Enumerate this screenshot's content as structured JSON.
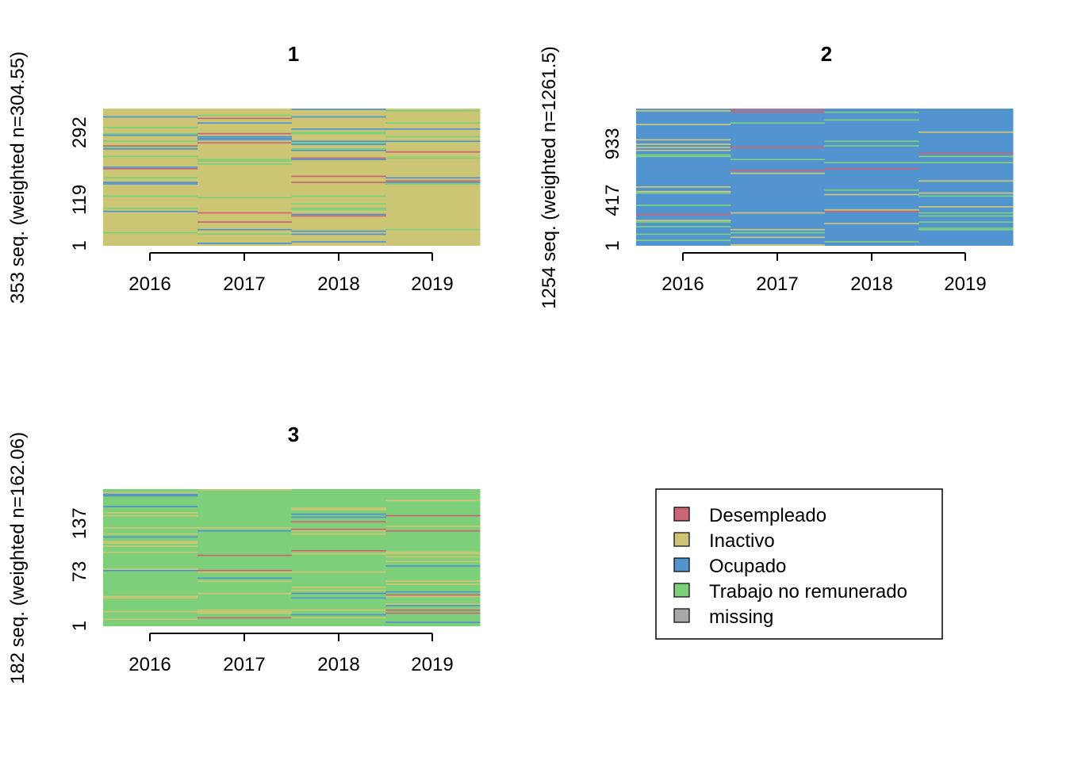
{
  "chart_data": [
    {
      "type": "heatmap",
      "title": "1",
      "ylabel": "353 seq. (weighted n=304.55)",
      "x": [
        "2016",
        "2017",
        "2018",
        "2019"
      ],
      "yticks": [
        "1",
        "119",
        "292"
      ],
      "n_seq": 353,
      "dominant_state": "Inactivo",
      "state_mix": {
        "Inactivo": 0.78,
        "Ocupado": 0.1,
        "Trabajo no remunerado": 0.09,
        "Desempleado": 0.03
      }
    },
    {
      "type": "heatmap",
      "title": "2",
      "ylabel": "1254 seq. (weighted n=1261.5)",
      "x": [
        "2016",
        "2017",
        "2018",
        "2019"
      ],
      "yticks": [
        "1",
        "417",
        "933"
      ],
      "n_seq": 1254,
      "dominant_state": "Ocupado",
      "state_mix": {
        "Ocupado": 0.86,
        "Inactivo": 0.06,
        "Trabajo no remunerado": 0.05,
        "Desempleado": 0.03
      }
    },
    {
      "type": "heatmap",
      "title": "3",
      "ylabel": "182 seq. (weighted n=162.06)",
      "x": [
        "2016",
        "2017",
        "2018",
        "2019"
      ],
      "yticks": [
        "1",
        "73",
        "137"
      ],
      "n_seq": 182,
      "dominant_state": "Trabajo no remunerado",
      "state_mix": {
        "Trabajo no remunerado": 0.8,
        "Inactivo": 0.11,
        "Ocupado": 0.06,
        "Desempleado": 0.03
      }
    }
  ],
  "legend": {
    "items": [
      {
        "label": "Desempleado",
        "color": "#CC6677"
      },
      {
        "label": "Inactivo",
        "color": "#CCC674"
      },
      {
        "label": "Ocupado",
        "color": "#5294CF"
      },
      {
        "label": "Trabajo no remunerado",
        "color": "#7ECF7A"
      },
      {
        "label": "missing",
        "color": "#A8A8A8"
      }
    ]
  }
}
